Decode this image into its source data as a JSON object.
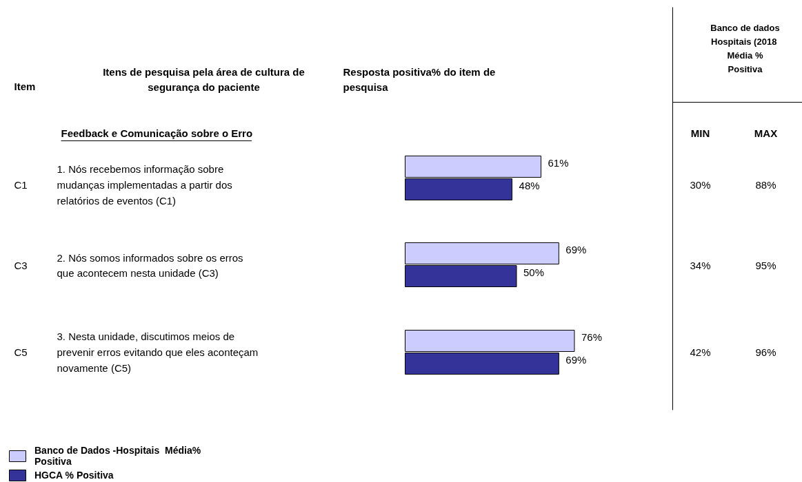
{
  "chart_data": {
    "type": "bar",
    "orientation": "horizontal",
    "categories": [
      "1. Nós recebemos informação sobre\nmudanças implementadas a partir dos\nrelatórios de eventos (C1)",
      "2. Nós somos informados sobre os erros\nque acontecem nesta unidade (C3)",
      "3. Nesta unidade, discutimos meios de\nprevenir erros evitando que eles aconteçam\nnovamente (C5)"
    ],
    "series": [
      {
        "name": "Banco de Dados -Hospitais  Média%\nPositiva",
        "color": "#ccccff",
        "values": [
          61,
          69,
          76
        ],
        "value_labels": [
          "61%",
          "69%",
          "76%"
        ]
      },
      {
        "name": "HGCA % Positiva",
        "color": "#333399",
        "values": [
          48,
          50,
          69
        ],
        "value_labels": [
          "48%",
          "50%",
          "69%"
        ]
      }
    ],
    "tick_labels": false,
    "grid": false,
    "legend": "bottom left",
    "annotations": [
      "Item",
      "Itens de pesquisa pela área de cultura de\nsegurança do paciente",
      "Resposta positiva% do item de\npesquisa",
      "Banco de dados\nHospitais  (2018\nMédia %\nPositiva",
      "Feedback e Comunicação sobre o Erro",
      "MIN",
      "MAX",
      "C1",
      "30%",
      "88%",
      "C3",
      "34%",
      "95%",
      "C5",
      "42%",
      "96%"
    ]
  }
}
